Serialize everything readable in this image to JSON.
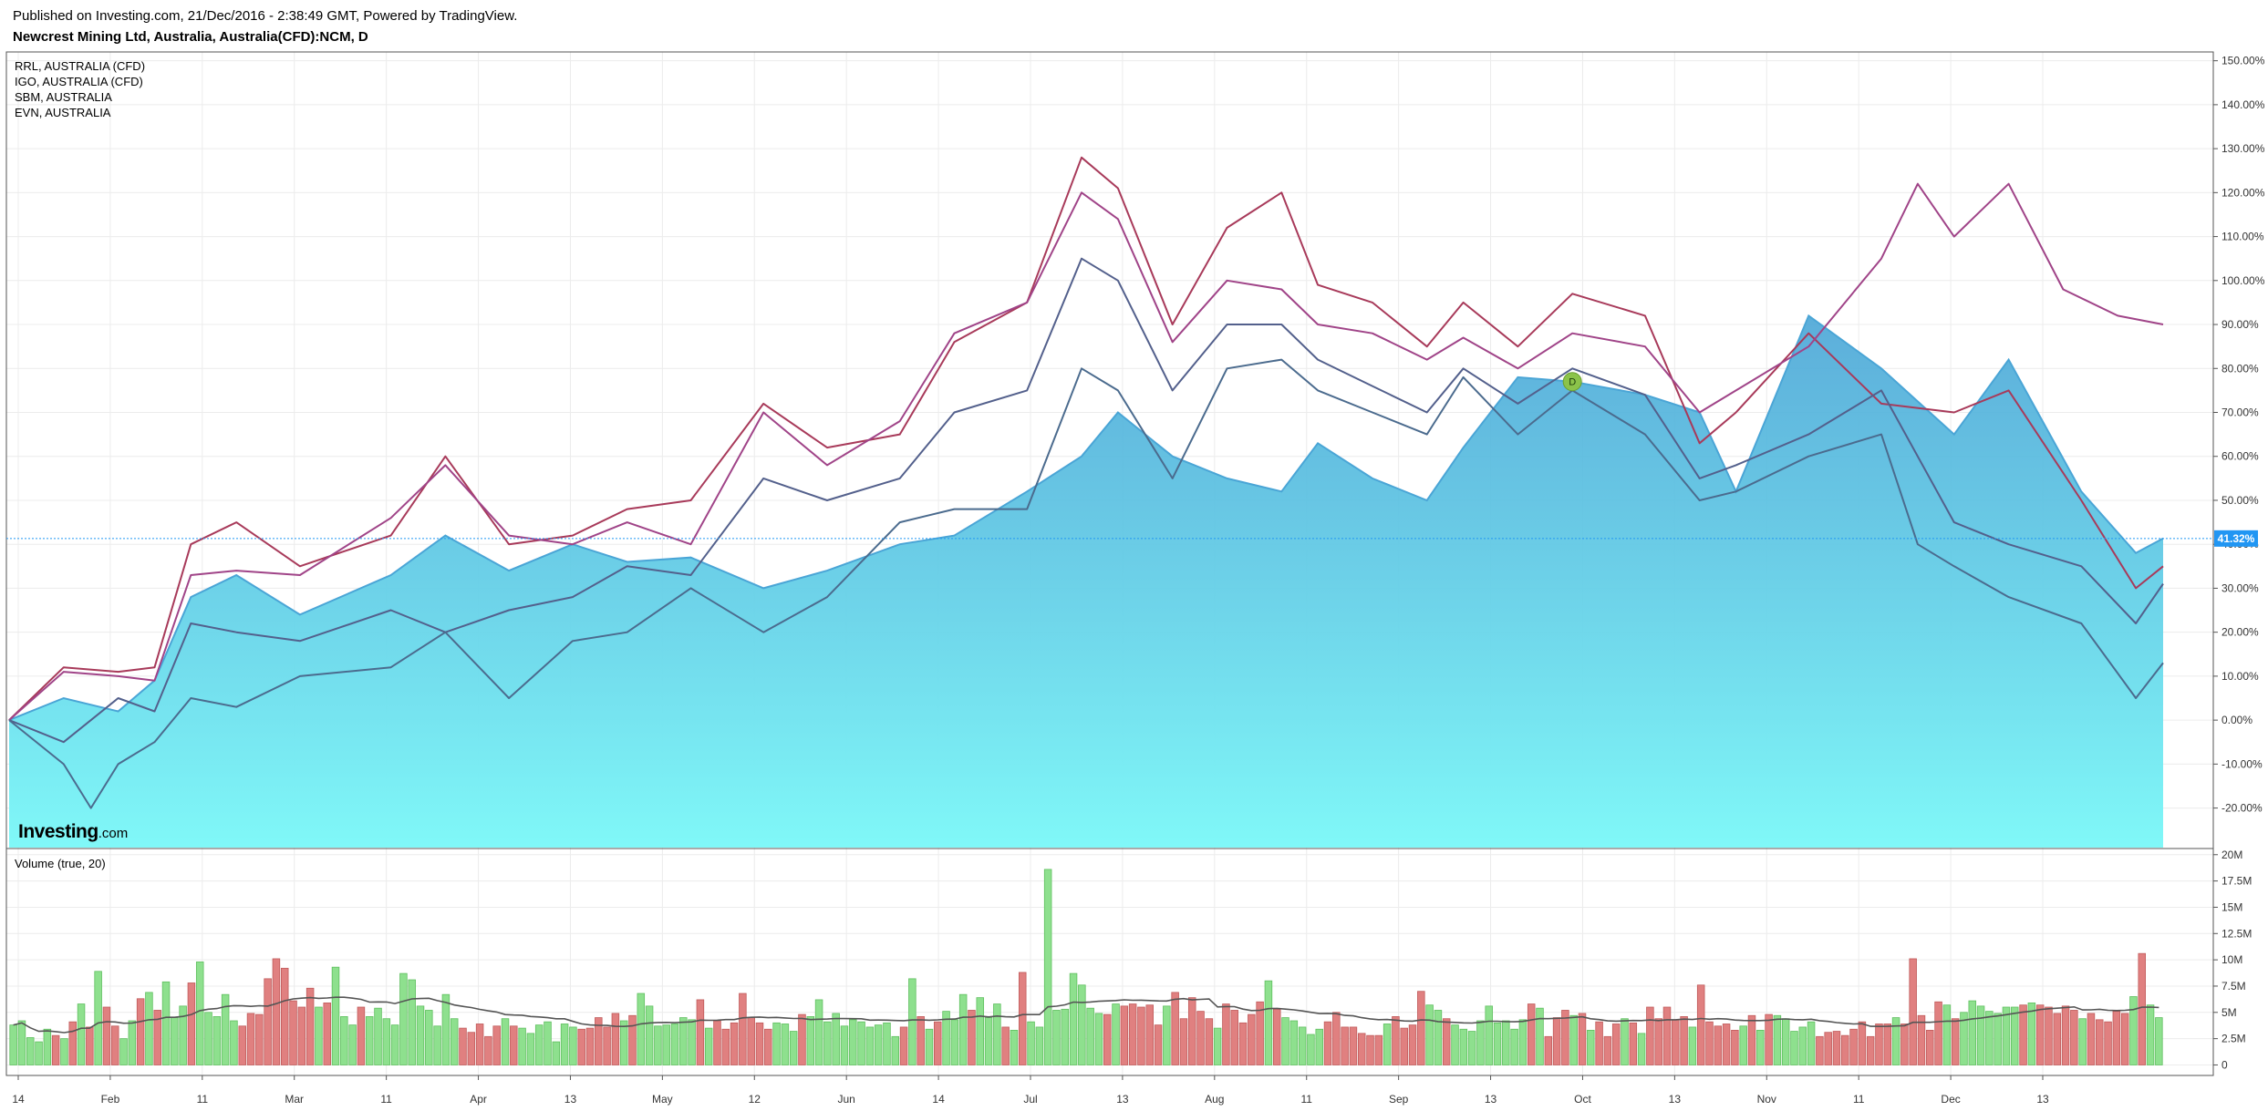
{
  "header": {
    "published": "Published on Investing.com, 21/Dec/2016 - 2:38:49 GMT, Powered by TradingView.",
    "symbol": "Newcrest Mining Ltd, Australia, Australia(CFD):NCM, D"
  },
  "legend": [
    "RRL, AUSTRALIA (CFD)",
    "IGO, AUSTRALIA (CFD)",
    "SBM, AUSTRALIA",
    "EVN, AUSTRALIA"
  ],
  "volume_title": "Volume (true, 20)",
  "logo": {
    "brand": "Investing",
    "suffix": ".com"
  },
  "colors": {
    "area_top": "#4aa5d6",
    "area_bottom": "#80f8f8",
    "rrl": "#a83a5a",
    "igo": "#a04488",
    "sbm": "#53608c",
    "evn": "#4b6b8e",
    "vol_up": "#8ee08e",
    "vol_down": "#e08080",
    "vol_ma": "#555555",
    "last_price": "#2196f3"
  },
  "chart_data": [
    {
      "type": "area",
      "x_ticks": [
        "14",
        "Feb",
        "11",
        "Mar",
        "11",
        "Apr",
        "13",
        "May",
        "12",
        "Jun",
        "14",
        "Jul",
        "13",
        "Aug",
        "11",
        "Sep",
        "13",
        "Oct",
        "13",
        "Nov",
        "11",
        "Dec",
        "13"
      ],
      "y_ticks": [
        "150.00%",
        "140.00%",
        "130.00%",
        "120.00%",
        "110.00%",
        "100.00%",
        "90.00%",
        "80.00%",
        "70.00%",
        "60.00%",
        "50.00%",
        "40.00%",
        "30.00%",
        "20.00%",
        "10.00%",
        "0.00%",
        "-10.00%",
        "-20.00%"
      ],
      "ylim": [
        -29,
        152
      ],
      "x_range": [
        0,
        237
      ],
      "last_value": 41.32,
      "last_label": "41.32%",
      "marker_label": "D",
      "marker": {
        "x": 172,
        "y": 77
      },
      "series": [
        {
          "name": "Newcrest Mining Ltd, Australia, Australia(CFD):NCM, D",
          "points": [
            [
              0,
              0
            ],
            [
              6,
              5
            ],
            [
              12,
              2
            ],
            [
              16,
              9
            ],
            [
              20,
              28
            ],
            [
              25,
              33
            ],
            [
              32,
              24
            ],
            [
              42,
              33
            ],
            [
              48,
              42
            ],
            [
              55,
              34
            ],
            [
              62,
              40
            ],
            [
              68,
              36
            ],
            [
              75,
              37
            ],
            [
              83,
              30
            ],
            [
              90,
              34
            ],
            [
              98,
              40
            ],
            [
              104,
              42
            ],
            [
              112,
              52
            ],
            [
              118,
              60
            ],
            [
              122,
              70
            ],
            [
              128,
              60
            ],
            [
              134,
              55
            ],
            [
              140,
              52
            ],
            [
              144,
              63
            ],
            [
              150,
              55
            ],
            [
              156,
              50
            ],
            [
              160,
              62
            ],
            [
              166,
              78
            ],
            [
              172,
              77
            ],
            [
              180,
              74
            ],
            [
              186,
              70
            ],
            [
              190,
              52
            ],
            [
              198,
              92
            ],
            [
              206,
              80
            ],
            [
              214,
              65
            ],
            [
              220,
              82
            ],
            [
              228,
              52
            ],
            [
              234,
              38
            ],
            [
              237,
              41.32
            ]
          ]
        },
        {
          "name": "RRL, AUSTRALIA (CFD)",
          "points": [
            [
              0,
              0
            ],
            [
              6,
              12
            ],
            [
              12,
              11
            ],
            [
              16,
              12
            ],
            [
              20,
              40
            ],
            [
              25,
              45
            ],
            [
              32,
              35
            ],
            [
              42,
              42
            ],
            [
              48,
              60
            ],
            [
              55,
              40
            ],
            [
              62,
              42
            ],
            [
              68,
              48
            ],
            [
              75,
              50
            ],
            [
              83,
              72
            ],
            [
              90,
              62
            ],
            [
              98,
              65
            ],
            [
              104,
              86
            ],
            [
              112,
              95
            ],
            [
              118,
              128
            ],
            [
              122,
              121
            ],
            [
              128,
              90
            ],
            [
              134,
              112
            ],
            [
              140,
              120
            ],
            [
              144,
              99
            ],
            [
              150,
              95
            ],
            [
              156,
              85
            ],
            [
              160,
              95
            ],
            [
              166,
              85
            ],
            [
              172,
              97
            ],
            [
              180,
              92
            ],
            [
              186,
              63
            ],
            [
              190,
              70
            ],
            [
              198,
              88
            ],
            [
              206,
              72
            ],
            [
              214,
              70
            ],
            [
              220,
              75
            ],
            [
              228,
              50
            ],
            [
              234,
              30
            ],
            [
              237,
              35
            ]
          ]
        },
        {
          "name": "IGO, AUSTRALIA (CFD)",
          "points": [
            [
              0,
              0
            ],
            [
              6,
              11
            ],
            [
              12,
              10
            ],
            [
              16,
              9
            ],
            [
              20,
              33
            ],
            [
              25,
              34
            ],
            [
              32,
              33
            ],
            [
              42,
              46
            ],
            [
              48,
              58
            ],
            [
              55,
              42
            ],
            [
              62,
              40
            ],
            [
              68,
              45
            ],
            [
              75,
              40
            ],
            [
              83,
              70
            ],
            [
              90,
              58
            ],
            [
              98,
              68
            ],
            [
              104,
              88
            ],
            [
              112,
              95
            ],
            [
              118,
              120
            ],
            [
              122,
              114
            ],
            [
              128,
              86
            ],
            [
              134,
              100
            ],
            [
              140,
              98
            ],
            [
              144,
              90
            ],
            [
              150,
              88
            ],
            [
              156,
              82
            ],
            [
              160,
              87
            ],
            [
              166,
              80
            ],
            [
              172,
              88
            ],
            [
              180,
              85
            ],
            [
              186,
              70
            ],
            [
              190,
              75
            ],
            [
              198,
              85
            ],
            [
              206,
              105
            ],
            [
              210,
              122
            ],
            [
              214,
              110
            ],
            [
              220,
              122
            ],
            [
              226,
              98
            ],
            [
              232,
              92
            ],
            [
              237,
              90
            ]
          ]
        },
        {
          "name": "SBM, AUSTRALIA",
          "points": [
            [
              0,
              0
            ],
            [
              6,
              -5
            ],
            [
              12,
              5
            ],
            [
              16,
              2
            ],
            [
              20,
              22
            ],
            [
              25,
              20
            ],
            [
              32,
              18
            ],
            [
              42,
              25
            ],
            [
              48,
              20
            ],
            [
              55,
              25
            ],
            [
              62,
              28
            ],
            [
              68,
              35
            ],
            [
              75,
              33
            ],
            [
              83,
              55
            ],
            [
              90,
              50
            ],
            [
              98,
              55
            ],
            [
              104,
              70
            ],
            [
              112,
              75
            ],
            [
              118,
              105
            ],
            [
              122,
              100
            ],
            [
              128,
              75
            ],
            [
              134,
              90
            ],
            [
              140,
              90
            ],
            [
              144,
              82
            ],
            [
              150,
              76
            ],
            [
              156,
              70
            ],
            [
              160,
              80
            ],
            [
              166,
              72
            ],
            [
              172,
              80
            ],
            [
              180,
              74
            ],
            [
              186,
              55
            ],
            [
              190,
              58
            ],
            [
              198,
              65
            ],
            [
              206,
              75
            ],
            [
              214,
              45
            ],
            [
              220,
              40
            ],
            [
              228,
              35
            ],
            [
              234,
              22
            ],
            [
              237,
              31
            ]
          ]
        },
        {
          "name": "EVN, AUSTRALIA",
          "points": [
            [
              0,
              0
            ],
            [
              6,
              -10
            ],
            [
              9,
              -20
            ],
            [
              12,
              -10
            ],
            [
              16,
              -5
            ],
            [
              20,
              5
            ],
            [
              25,
              3
            ],
            [
              32,
              10
            ],
            [
              42,
              12
            ],
            [
              48,
              20
            ],
            [
              55,
              5
            ],
            [
              62,
              18
            ],
            [
              68,
              20
            ],
            [
              75,
              30
            ],
            [
              83,
              20
            ],
            [
              90,
              28
            ],
            [
              98,
              45
            ],
            [
              104,
              48
            ],
            [
              112,
              48
            ],
            [
              118,
              80
            ],
            [
              122,
              75
            ],
            [
              128,
              55
            ],
            [
              134,
              80
            ],
            [
              140,
              82
            ],
            [
              144,
              75
            ],
            [
              150,
              70
            ],
            [
              156,
              65
            ],
            [
              160,
              78
            ],
            [
              166,
              65
            ],
            [
              172,
              75
            ],
            [
              180,
              65
            ],
            [
              186,
              50
            ],
            [
              190,
              52
            ],
            [
              198,
              60
            ],
            [
              206,
              65
            ],
            [
              210,
              40
            ],
            [
              214,
              35
            ],
            [
              220,
              28
            ],
            [
              228,
              22
            ],
            [
              234,
              5
            ],
            [
              237,
              13
            ]
          ]
        }
      ]
    },
    {
      "type": "bar",
      "title": "Volume (true, 20)",
      "y_ticks": [
        "20M",
        "17.5M",
        "15M",
        "12.5M",
        "10M",
        "7.5M",
        "5M",
        "2.5M",
        "0"
      ],
      "ylim": [
        -1,
        20.5
      ],
      "unit": "M",
      "series": [
        {
          "name": "Volume",
          "values": [
            3.8,
            4.2,
            2.6,
            2.2,
            3.4,
            2.8,
            2.5,
            4.1,
            5.8,
            3.6,
            8.9,
            5.5,
            3.7,
            2.5,
            4.2,
            6.3,
            6.9,
            5.2,
            7.9,
            4.5,
            5.6,
            7.8,
            9.8,
            5.0,
            4.6,
            6.7,
            4.2,
            3.7,
            4.9,
            4.8,
            8.2,
            10.1,
            9.2,
            6.1,
            5.5,
            7.3,
            5.5,
            5.9,
            9.3,
            4.6,
            3.8,
            5.5,
            4.6,
            5.4,
            4.4,
            3.8,
            8.7,
            8.1,
            5.6,
            5.2,
            3.7,
            6.7,
            4.4,
            3.5,
            3.1,
            3.9,
            2.7,
            3.7,
            4.4,
            3.7,
            3.5,
            3.0,
            3.8,
            4.1,
            2.2,
            3.9,
            3.6,
            3.4,
            3.5,
            4.5,
            3.6,
            4.9,
            4.2,
            4.7,
            6.8,
            5.6,
            3.7,
            3.8,
            3.9,
            4.5,
            4.3,
            6.2,
            3.5,
            4.2,
            3.4,
            4.0,
            6.8,
            4.5,
            4.0,
            3.4,
            4.0,
            3.9,
            3.2,
            4.8,
            4.6,
            6.2,
            4.1,
            4.9,
            3.7,
            4.3,
            4.1,
            3.6,
            3.8,
            4.0,
            2.7,
            3.6,
            8.2,
            4.6,
            3.4,
            4.1,
            5.1,
            4.3,
            6.7,
            5.2,
            6.4,
            4.5,
            5.8,
            3.6,
            3.3,
            8.8,
            4.1,
            3.6,
            18.6,
            5.2,
            5.3,
            8.7,
            7.6,
            5.4,
            4.9,
            4.8,
            5.8,
            5.6,
            5.8,
            5.5,
            5.7,
            3.8,
            5.6,
            6.9,
            4.4,
            6.4,
            5.1,
            4.4,
            3.5,
            5.8,
            5.2,
            4.0,
            4.8,
            6.0,
            8.0,
            5.3,
            4.5,
            4.2,
            3.6,
            2.9,
            3.4,
            4.1,
            5.0,
            3.6,
            3.6,
            3.0,
            2.8,
            2.8,
            3.9,
            4.6,
            3.5,
            3.8,
            7.0,
            5.7,
            5.2,
            4.4,
            3.8,
            3.4,
            3.2,
            4.2,
            5.6,
            4.0,
            4.2,
            3.4,
            4.3,
            5.8,
            5.4,
            2.7,
            4.5,
            5.2,
            4.7,
            4.9,
            3.3,
            4.1,
            2.7,
            3.9,
            4.4,
            4.0,
            3.0,
            5.5,
            4.4,
            5.5,
            4.3,
            4.6,
            3.6,
            7.6,
            4.1,
            3.7,
            3.9,
            3.3,
            3.7,
            4.7,
            3.3,
            4.8,
            4.7,
            4.4,
            3.2,
            3.6,
            4.1,
            2.7,
            3.1,
            3.2,
            2.8,
            3.4,
            4.1,
            2.7,
            3.9,
            3.9,
            4.5,
            3.9,
            10.1,
            4.7,
            3.3,
            6.0,
            5.7,
            4.4,
            5.0,
            6.1,
            5.6,
            5.1,
            4.9,
            5.5,
            5.5,
            5.7,
            5.9,
            5.7,
            5.5,
            4.9,
            5.6,
            5.2,
            4.4,
            4.9,
            4.3,
            4.1,
            5.1,
            4.9,
            6.5,
            10.6,
            5.7,
            4.5
          ]
        }
      ]
    }
  ]
}
